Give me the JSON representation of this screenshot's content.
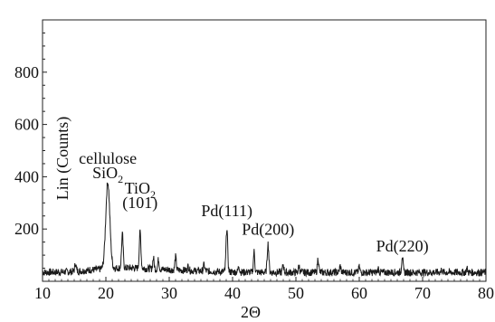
{
  "chart_data": {
    "type": "line",
    "title": "",
    "xlabel": "2Θ",
    "ylabel": "Lin (Counts)",
    "xlim": [
      10,
      80
    ],
    "ylim": [
      0,
      1000
    ],
    "x_ticks": [
      "10",
      "20",
      "30",
      "40",
      "50",
      "60",
      "70",
      "80"
    ],
    "y_ticks": [
      "200",
      "400",
      "600",
      "800"
    ],
    "grid": false,
    "series": [
      {
        "peaks": [
          {
            "x": 15.2,
            "y": 55
          },
          {
            "x": 17.5,
            "y": 30
          },
          {
            "x": 20.3,
            "y": 365
          },
          {
            "x": 22.6,
            "y": 165
          },
          {
            "x": 25.4,
            "y": 175
          },
          {
            "x": 27.5,
            "y": 75
          },
          {
            "x": 28.3,
            "y": 70
          },
          {
            "x": 31.0,
            "y": 80
          },
          {
            "x": 33.0,
            "y": 45
          },
          {
            "x": 35.5,
            "y": 50
          },
          {
            "x": 39.1,
            "y": 190
          },
          {
            "x": 41.0,
            "y": 45
          },
          {
            "x": 43.4,
            "y": 100
          },
          {
            "x": 45.6,
            "y": 130
          },
          {
            "x": 48.0,
            "y": 50
          },
          {
            "x": 50.5,
            "y": 45
          },
          {
            "x": 53.5,
            "y": 75
          },
          {
            "x": 57.0,
            "y": 45
          },
          {
            "x": 60.0,
            "y": 40
          },
          {
            "x": 63.0,
            "y": 35
          },
          {
            "x": 66.8,
            "y": 85
          },
          {
            "x": 73.0,
            "y": 30
          },
          {
            "x": 77.0,
            "y": 35
          }
        ]
      }
    ],
    "annotations": [
      {
        "text": "cellulose",
        "x": 20.3,
        "y": 450
      },
      {
        "text": "SiO",
        "sub": "2",
        "x": 20.3,
        "y": 395
      },
      {
        "text": "TiO",
        "sub": "2",
        "x": 25.4,
        "y": 335
      },
      {
        "text": "(101)",
        "x": 25.4,
        "y": 280
      },
      {
        "text": "Pd(111)",
        "x": 39.1,
        "y": 250
      },
      {
        "text": "Pd(200)",
        "x": 45.6,
        "y": 178
      },
      {
        "text": "Pd(220)",
        "x": 66.8,
        "y": 115
      }
    ]
  }
}
